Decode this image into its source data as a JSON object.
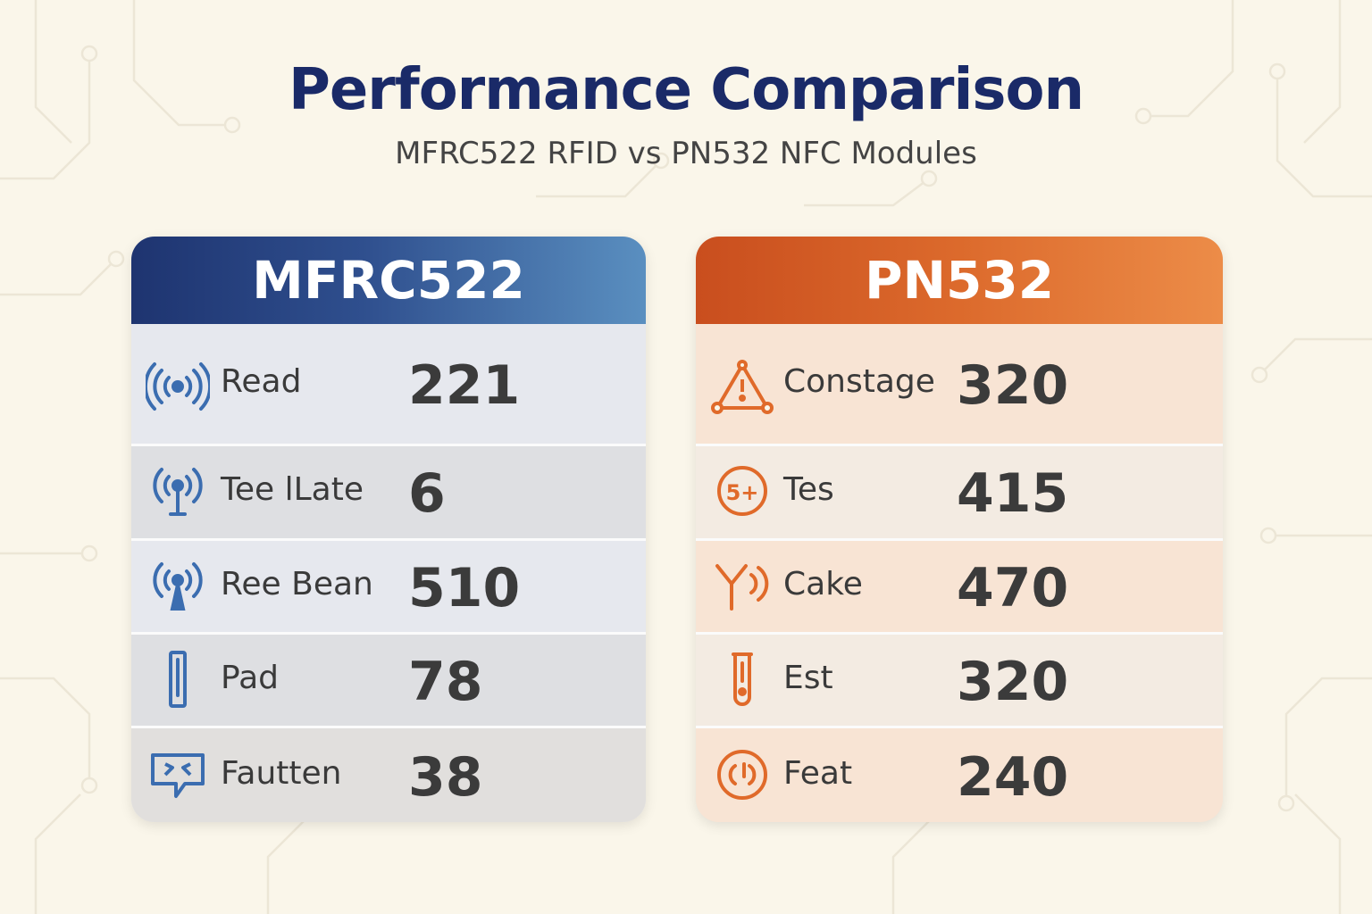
{
  "title": "Performance Comparison",
  "subtitle": "MFRC522 RFID vs PN532 NFC Modules",
  "colors": {
    "navy": "#1a2a68",
    "blue_accent": "#3b6db0",
    "orange_accent": "#e06a2a",
    "background": "#faf6ea"
  },
  "left_card": {
    "header": "MFRC522",
    "rows": [
      {
        "icon": "wireless-signal-icon",
        "label": "Read",
        "value": "221"
      },
      {
        "icon": "antenna-icon",
        "label": "Tee lLate",
        "value": "6"
      },
      {
        "icon": "antenna-icon",
        "label": "Ree Bean",
        "value": "510"
      },
      {
        "icon": "bar-device-icon",
        "label": "Pad",
        "value": "78"
      },
      {
        "icon": "chat-bubble-icon",
        "label": "Fautten",
        "value": "38"
      }
    ]
  },
  "right_card": {
    "header": "PN532",
    "rows": [
      {
        "icon": "warning-network-icon",
        "label": "Constage",
        "value": "320"
      },
      {
        "icon": "coin-icon",
        "label": "Tes",
        "value": "415"
      },
      {
        "icon": "signal-tower-icon",
        "label": "Cake",
        "value": "470"
      },
      {
        "icon": "test-tube-icon",
        "label": "Est",
        "value": "320"
      },
      {
        "icon": "clock-icon",
        "label": "Feat",
        "value": "240"
      }
    ],
    "coin_icon_text": "5+"
  }
}
